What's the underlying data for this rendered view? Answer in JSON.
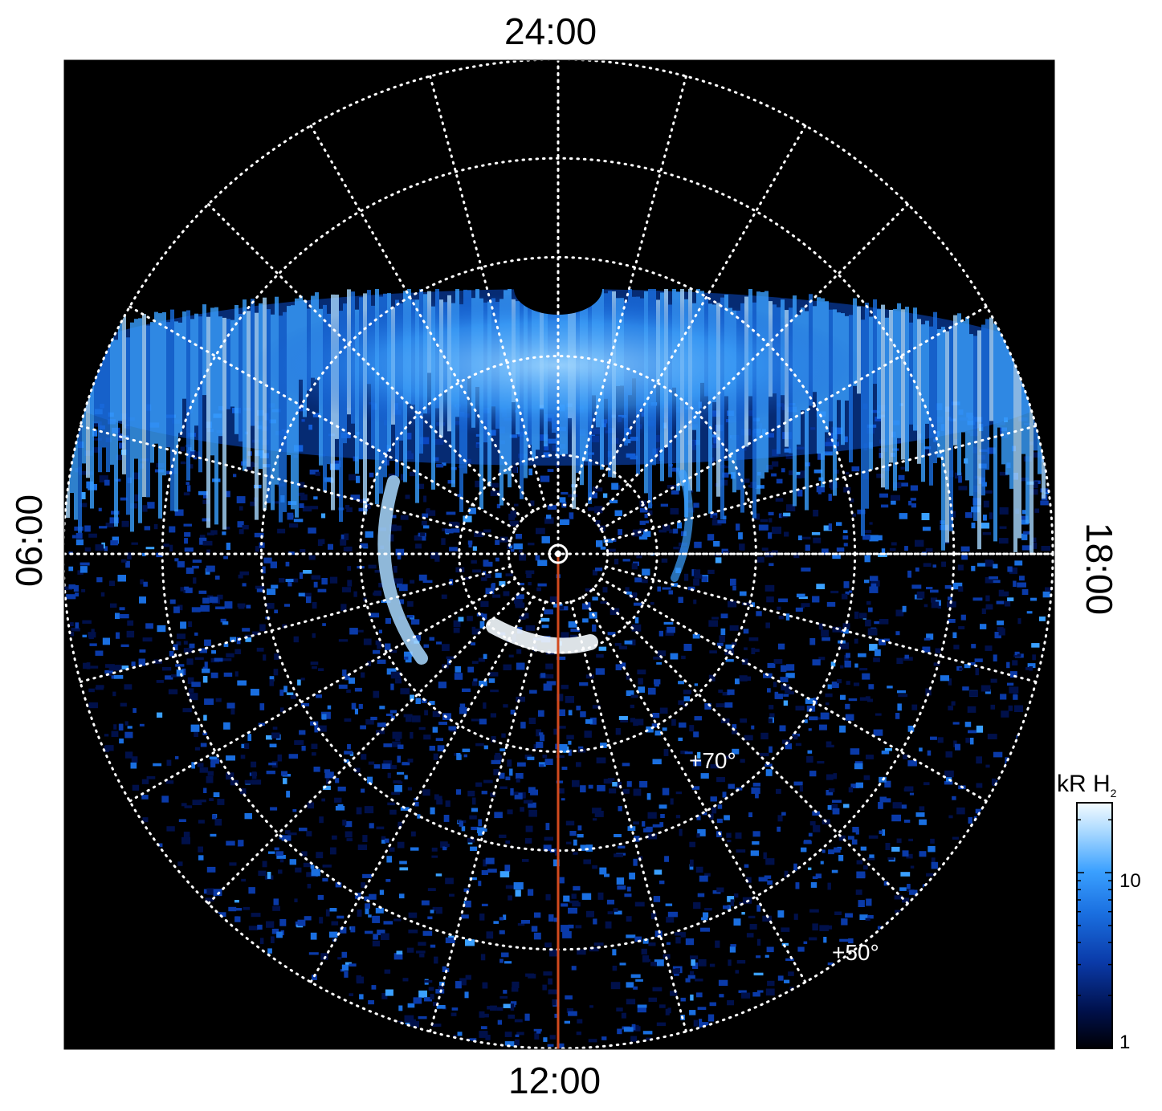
{
  "chart_data": {
    "type": "heatmap",
    "projection": "polar",
    "colormap": [
      "#000005",
      "#00104a",
      "#0a3aa8",
      "#1a6fe0",
      "#3aa0ff",
      "#a8d8ff",
      "#f4fbff"
    ],
    "local_time_labels": {
      "top": "24:00",
      "bottom": "12:00",
      "left": "06:00",
      "right": "18:00"
    },
    "latitude_rings": [
      50,
      60,
      70,
      80,
      85
    ],
    "latitude_labels": [
      {
        "text": "+70°",
        "latitude": 70
      },
      {
        "text": "+50°",
        "latitude": 50
      }
    ],
    "meridian_spacing_hours": 1,
    "marked_meridian_local_time": "12:00",
    "marked_meridian_color": "#d24a1e",
    "colorbar": {
      "title": "kR H",
      "title_sub": "2",
      "scale": "log",
      "range": [
        1,
        25
      ],
      "tick_labels": [
        "10",
        "1"
      ]
    }
  }
}
